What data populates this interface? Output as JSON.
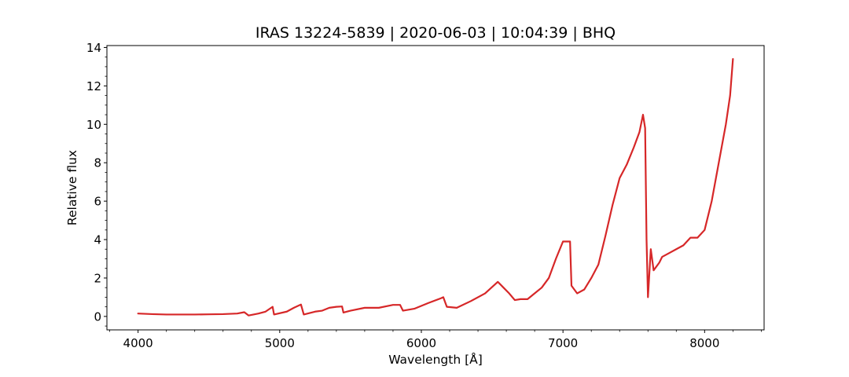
{
  "chart_data": {
    "type": "line",
    "title": "IRAS 13224-5839 | 2020-06-03 | 10:04:39 | BHQ",
    "xlabel": "Wavelength [Å]",
    "ylabel": "Relative flux",
    "xlim": [
      3780,
      8420
    ],
    "ylim": [
      -0.7,
      14.1
    ],
    "xticks": [
      4000,
      5000,
      6000,
      7000,
      8000
    ],
    "yticks": [
      0,
      2,
      4,
      6,
      8,
      10,
      12,
      14
    ],
    "grid": false,
    "legend": "none",
    "series": [
      {
        "color": "#d62728",
        "points": [
          [
            4000,
            0.15
          ],
          [
            4100,
            0.12
          ],
          [
            4200,
            0.1
          ],
          [
            4300,
            0.1
          ],
          [
            4400,
            0.1
          ],
          [
            4500,
            0.11
          ],
          [
            4600,
            0.12
          ],
          [
            4700,
            0.15
          ],
          [
            4750,
            0.22
          ],
          [
            4780,
            0.05
          ],
          [
            4850,
            0.15
          ],
          [
            4900,
            0.25
          ],
          [
            4950,
            0.5
          ],
          [
            4960,
            0.1
          ],
          [
            5050,
            0.25
          ],
          [
            5100,
            0.45
          ],
          [
            5150,
            0.62
          ],
          [
            5170,
            0.1
          ],
          [
            5250,
            0.25
          ],
          [
            5300,
            0.3
          ],
          [
            5350,
            0.45
          ],
          [
            5400,
            0.5
          ],
          [
            5440,
            0.52
          ],
          [
            5450,
            0.2
          ],
          [
            5500,
            0.3
          ],
          [
            5600,
            0.45
          ],
          [
            5700,
            0.45
          ],
          [
            5800,
            0.6
          ],
          [
            5850,
            0.6
          ],
          [
            5870,
            0.3
          ],
          [
            5950,
            0.4
          ],
          [
            6050,
            0.7
          ],
          [
            6140,
            0.95
          ],
          [
            6155,
            1.0
          ],
          [
            6180,
            0.5
          ],
          [
            6250,
            0.45
          ],
          [
            6350,
            0.8
          ],
          [
            6450,
            1.2
          ],
          [
            6540,
            1.8
          ],
          [
            6580,
            1.5
          ],
          [
            6620,
            1.2
          ],
          [
            6660,
            0.85
          ],
          [
            6700,
            0.9
          ],
          [
            6750,
            0.9
          ],
          [
            6800,
            1.2
          ],
          [
            6850,
            1.5
          ],
          [
            6900,
            2.0
          ],
          [
            6950,
            3.0
          ],
          [
            7000,
            3.9
          ],
          [
            7050,
            3.9
          ],
          [
            7060,
            1.6
          ],
          [
            7080,
            1.4
          ],
          [
            7100,
            1.2
          ],
          [
            7150,
            1.4
          ],
          [
            7200,
            2.0
          ],
          [
            7250,
            2.7
          ],
          [
            7300,
            4.2
          ],
          [
            7350,
            5.8
          ],
          [
            7400,
            7.2
          ],
          [
            7450,
            7.9
          ],
          [
            7500,
            8.8
          ],
          [
            7540,
            9.6
          ],
          [
            7565,
            10.5
          ],
          [
            7580,
            9.8
          ],
          [
            7590,
            4.0
          ],
          [
            7600,
            1.0
          ],
          [
            7620,
            3.5
          ],
          [
            7640,
            2.4
          ],
          [
            7680,
            2.8
          ],
          [
            7700,
            3.1
          ],
          [
            7750,
            3.3
          ],
          [
            7800,
            3.5
          ],
          [
            7850,
            3.7
          ],
          [
            7900,
            4.1
          ],
          [
            7950,
            4.1
          ],
          [
            8000,
            4.5
          ],
          [
            8050,
            6.0
          ],
          [
            8100,
            8.0
          ],
          [
            8150,
            10.0
          ],
          [
            8180,
            11.5
          ],
          [
            8200,
            13.4
          ]
        ]
      }
    ]
  }
}
